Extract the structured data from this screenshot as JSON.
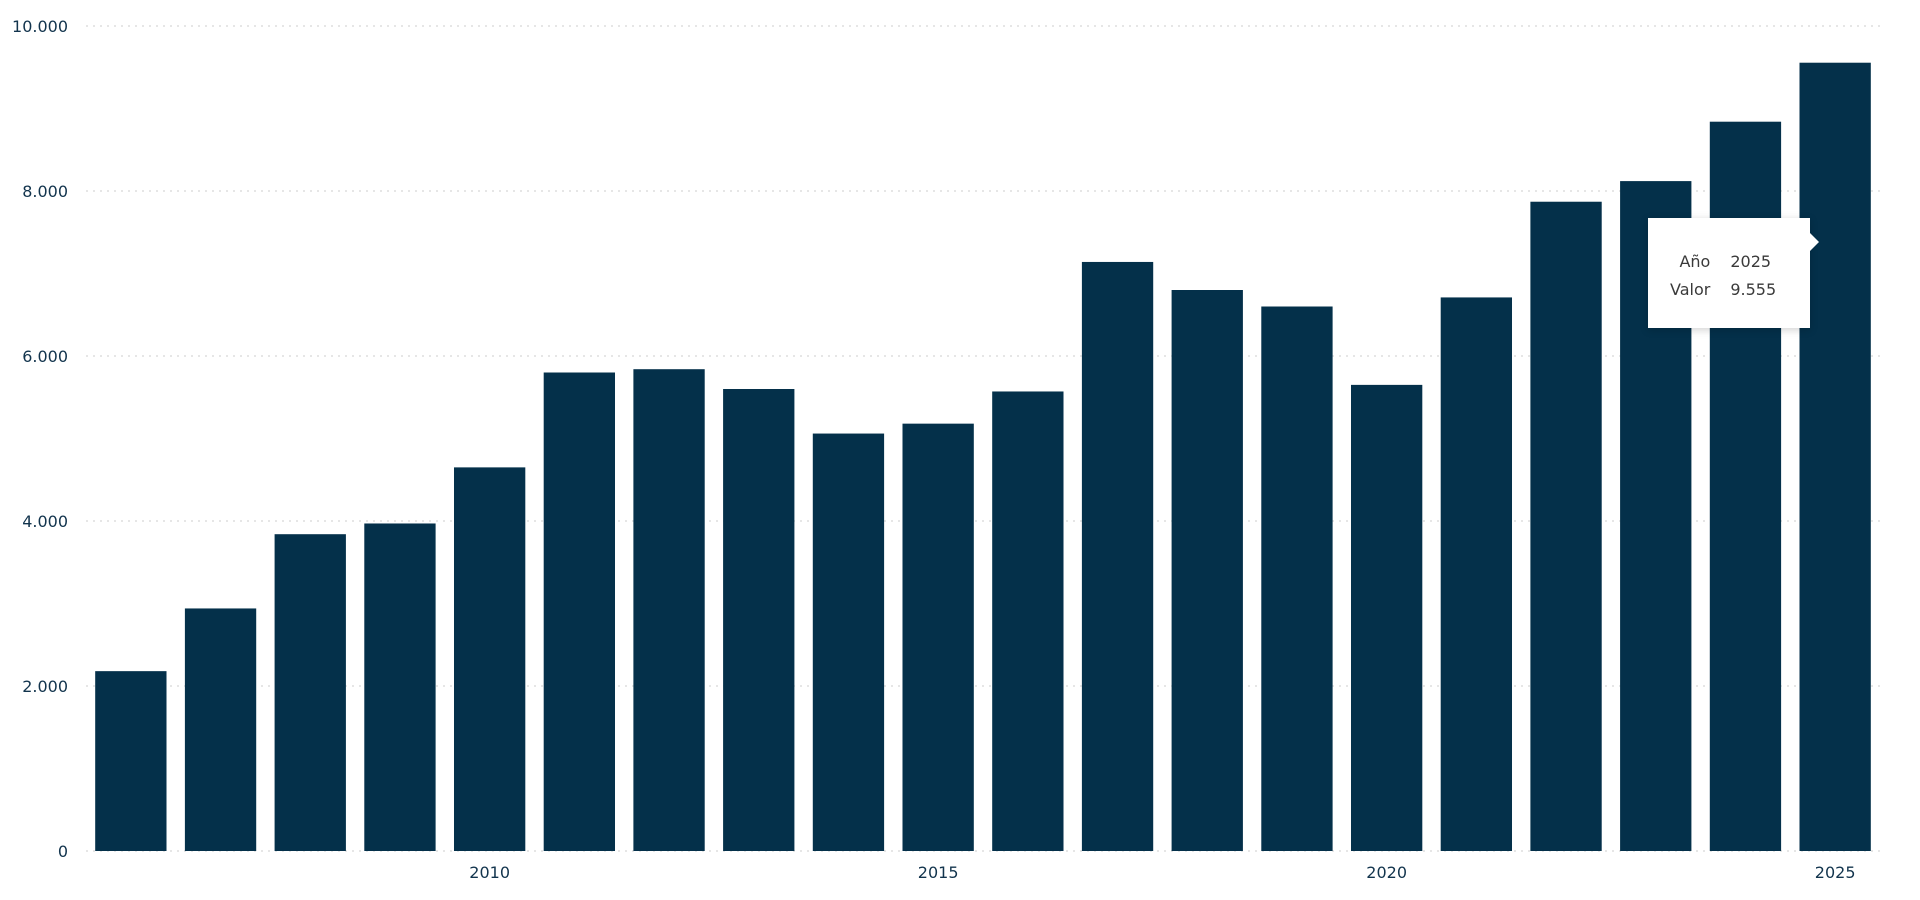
{
  "chart_data": {
    "type": "bar",
    "categories": [
      "2006",
      "2007",
      "2008",
      "2009",
      "2010",
      "2011",
      "2012",
      "2013",
      "2014",
      "2015",
      "2016",
      "2017",
      "2018",
      "2019",
      "2020",
      "2021",
      "2022",
      "2023",
      "2024",
      "2025"
    ],
    "values": [
      2180,
      2940,
      3840,
      3970,
      4650,
      5800,
      5840,
      5600,
      5060,
      5180,
      5570,
      7140,
      6800,
      6600,
      5650,
      6710,
      7870,
      8120,
      8840,
      9555
    ],
    "ylim": [
      0,
      10000
    ],
    "yticks": [
      0,
      2000,
      4000,
      6000,
      8000,
      10000
    ],
    "ytick_labels": [
      "0",
      "2.000",
      "4.000",
      "6.000",
      "8.000",
      "10.000"
    ],
    "xtick_labels": [
      "2010",
      "2015",
      "2020",
      "2025"
    ],
    "grid": true,
    "bar_color": "#04304a"
  },
  "tooltip": {
    "rows": [
      {
        "key": "Año",
        "value": "2025"
      },
      {
        "key": "Valor",
        "value": "9.555"
      }
    ]
  }
}
